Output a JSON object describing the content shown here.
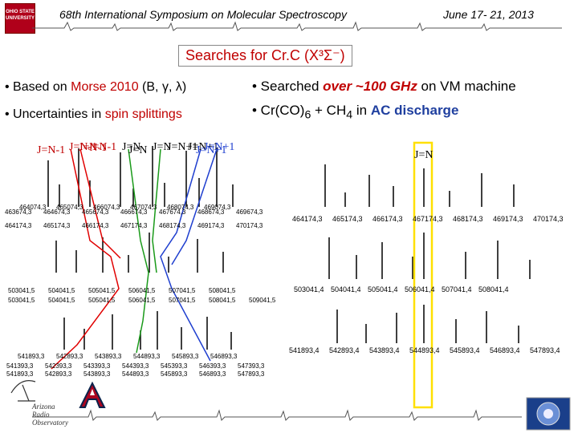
{
  "header": {
    "symposium": "68th International Symposium on Molecular Spectroscopy",
    "dates": "June 17- 21, 2013",
    "logo_left_text": "OHIO STATE UNIVERSITY"
  },
  "title": "Searches for Cr.C (X³Σ⁻)",
  "bullets_left": [
    {
      "prefix": "• Based on ",
      "highlight": "Morse 2010",
      "suffix": " (B, γ, λ)"
    },
    {
      "prefix": "• Uncertainties in ",
      "highlight": "spin splittings",
      "suffix": ""
    }
  ],
  "bullets_right": [
    {
      "prefix": "• Searched ",
      "highlight": "over ~100 GHz",
      "suffix": " on VM machine"
    },
    {
      "prefix": "• Cr(CO)",
      "sub": "6",
      "mid": " + CH",
      "sub2": "4",
      "mid2": " in ",
      "highlight": "AC discharge"
    }
  ],
  "left_panel": {
    "j_labels_left": [
      "J=N-1",
      "J=N-1",
      "J=N-1",
      "J=N-1"
    ],
    "j_labels_mid": [
      "J=N",
      "J=N",
      "J=N"
    ],
    "j_labels_right": [
      "J=N+1",
      "J=N+1",
      "J=N+1",
      "J=N+1"
    ],
    "row1_ticks": [
      "464074,3",
      "465074,3",
      "466074,3",
      "467074,3",
      "468074,3",
      "469074,3"
    ],
    "row1b_ticks": [
      "463674,3",
      "464674,3",
      "465674,3",
      "466674,3",
      "467674,3",
      "468674,3",
      "469674,3"
    ],
    "row2_ticks": [
      "464174,3",
      "465174,3",
      "466174,3",
      "467174,3",
      "468174,3",
      "469174,3",
      "470174,3"
    ],
    "row3_ticks": [
      "503041,5",
      "504041,5",
      "505041,5",
      "506041,5",
      "507041,5",
      "508041,5"
    ],
    "row3b_ticks": [
      "503041,5",
      "504041,5",
      "505041,5",
      "506041,5",
      "507041,5",
      "508041,5",
      "509041,5"
    ],
    "row4_ticks": [
      "541893,3",
      "542893,3",
      "543893,3",
      "544893,3",
      "545893,3",
      "546893,3"
    ],
    "row4b_ticks": [
      "541393,3",
      "542393,3",
      "543393,3",
      "544393,3",
      "545393,3",
      "546393,3",
      "547393,3"
    ],
    "row4c_ticks": [
      "541893,3",
      "542893,3",
      "543893,3",
      "544893,3",
      "545893,3",
      "546893,3",
      "547893,3"
    ]
  },
  "right_panel": {
    "j_label": "J=N",
    "row1_ticks": [
      "464174,3",
      "465174,3",
      "466174,3",
      "467174,3",
      "468174,3",
      "469174,3",
      "470174,3"
    ],
    "row2_ticks": [
      "503041,4",
      "504041,4",
      "505041,4",
      "506041,4",
      "507041,4",
      "508041,4"
    ],
    "row3_ticks": [
      "541893,4",
      "542893,4",
      "543893,4",
      "544893,4",
      "545893,4",
      "546893,4",
      "547893,4"
    ]
  },
  "footer": {
    "aro_line1": "Arizona",
    "aro_line2": "Radio",
    "aro_line3": "Observatory"
  },
  "colors": {
    "accent_red": "#c00000",
    "spin_blue": "#1f3f9f",
    "ohio_red": "#b0001a",
    "ua_blue": "#0c234b",
    "ua_red": "#ab0520",
    "highlight_yellow": "#ffe000"
  }
}
